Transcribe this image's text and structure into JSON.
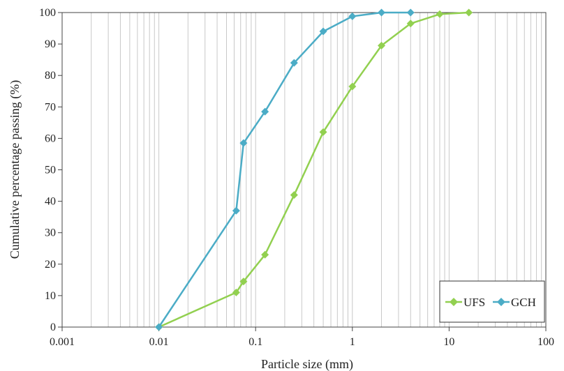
{
  "chart_data": {
    "type": "line",
    "title": "",
    "xlabel": "Particle size (mm)",
    "ylabel": "Cumulative percentage passing (%)",
    "x_scale": "log",
    "xlim": [
      0.001,
      100
    ],
    "ylim": [
      0,
      100
    ],
    "x_ticks": [
      0.001,
      0.01,
      0.1,
      1,
      10,
      100
    ],
    "x_tick_labels": [
      "0.001",
      "0.01",
      "0.1",
      "1",
      "10",
      "100"
    ],
    "y_ticks": [
      0,
      10,
      20,
      30,
      40,
      50,
      60,
      70,
      80,
      90,
      100
    ],
    "y_tick_labels": [
      "0",
      "10",
      "20",
      "30",
      "40",
      "50",
      "60",
      "70",
      "80",
      "90",
      "100"
    ],
    "grid": "vertical minor and major lines on x axis",
    "legend_position": "bottom-right",
    "series": [
      {
        "name": "UFS",
        "color": "#92d050",
        "marker": "diamond",
        "x": [
          0.01,
          0.063,
          0.075,
          0.125,
          0.25,
          0.5,
          1,
          2,
          4,
          8,
          16
        ],
        "y": [
          0,
          11,
          14.5,
          23,
          42,
          62,
          76.5,
          89.5,
          96.5,
          99.5,
          100
        ]
      },
      {
        "name": "GCH",
        "color": "#4bacc6",
        "marker": "diamond",
        "x": [
          0.01,
          0.063,
          0.075,
          0.125,
          0.25,
          0.5,
          1,
          2,
          4
        ],
        "y": [
          0,
          37,
          58.5,
          68.5,
          84,
          94,
          98.8,
          100,
          100
        ]
      }
    ]
  }
}
